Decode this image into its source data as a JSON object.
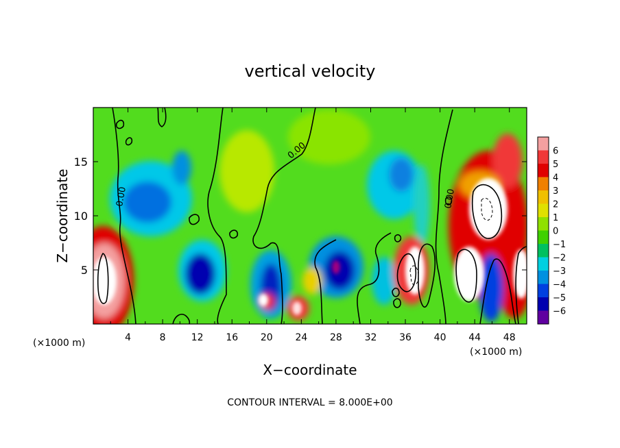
{
  "chart_data": {
    "type": "heatmap",
    "title": "vertical velocity",
    "xlabel": "X−coordinate",
    "ylabel": "Z−coordinate",
    "x_unit_left": "(×1000 m)",
    "x_unit_right": "(×1000 m)",
    "footer": "CONTOUR INTERVAL = 8.000E+00",
    "xlim": [
      0,
      50
    ],
    "ylim": [
      0,
      20
    ],
    "x_ticks": [
      "4",
      "8",
      "12",
      "16",
      "20",
      "24",
      "28",
      "32",
      "36",
      "40",
      "44",
      "48"
    ],
    "y_ticks": [
      "5",
      "10",
      "15"
    ],
    "contour_label": "0.00",
    "colorbar": {
      "ticks": [
        "6",
        "5",
        "4",
        "3",
        "2",
        "1",
        "0",
        "−1",
        "−2",
        "−3",
        "−4",
        "−5",
        "−6"
      ],
      "colors": [
        "#f4a0a0",
        "#f03838",
        "#e00000",
        "#f08000",
        "#f0c000",
        "#e0e000",
        "#90e000",
        "#40d000",
        "#00c060",
        "#00d0e0",
        "#0090e0",
        "#0040e0",
        "#0000b0",
        "#6000a0"
      ]
    },
    "field_features": [
      {
        "x": 1.5,
        "z": 4,
        "value": 8
      },
      {
        "x": 13,
        "z": 5,
        "value": -5
      },
      {
        "x": 19.5,
        "z": 2.5,
        "value": 8
      },
      {
        "x": 23,
        "z": 1.5,
        "value": 8
      },
      {
        "x": 28,
        "z": 5,
        "value": -5
      },
      {
        "x": 37,
        "z": 5,
        "value": 8
      },
      {
        "x": 45,
        "z": 11,
        "value": 8
      },
      {
        "x": 44,
        "z": 6,
        "value": 8
      },
      {
        "x": 49,
        "z": 4,
        "value": 8
      },
      {
        "x": 46,
        "z": 3,
        "value": -5
      },
      {
        "x": 10,
        "z": 10,
        "value": -3
      },
      {
        "x": 36,
        "z": 14,
        "value": -3
      },
      {
        "x": 18,
        "z": 13,
        "value": 2
      }
    ]
  }
}
